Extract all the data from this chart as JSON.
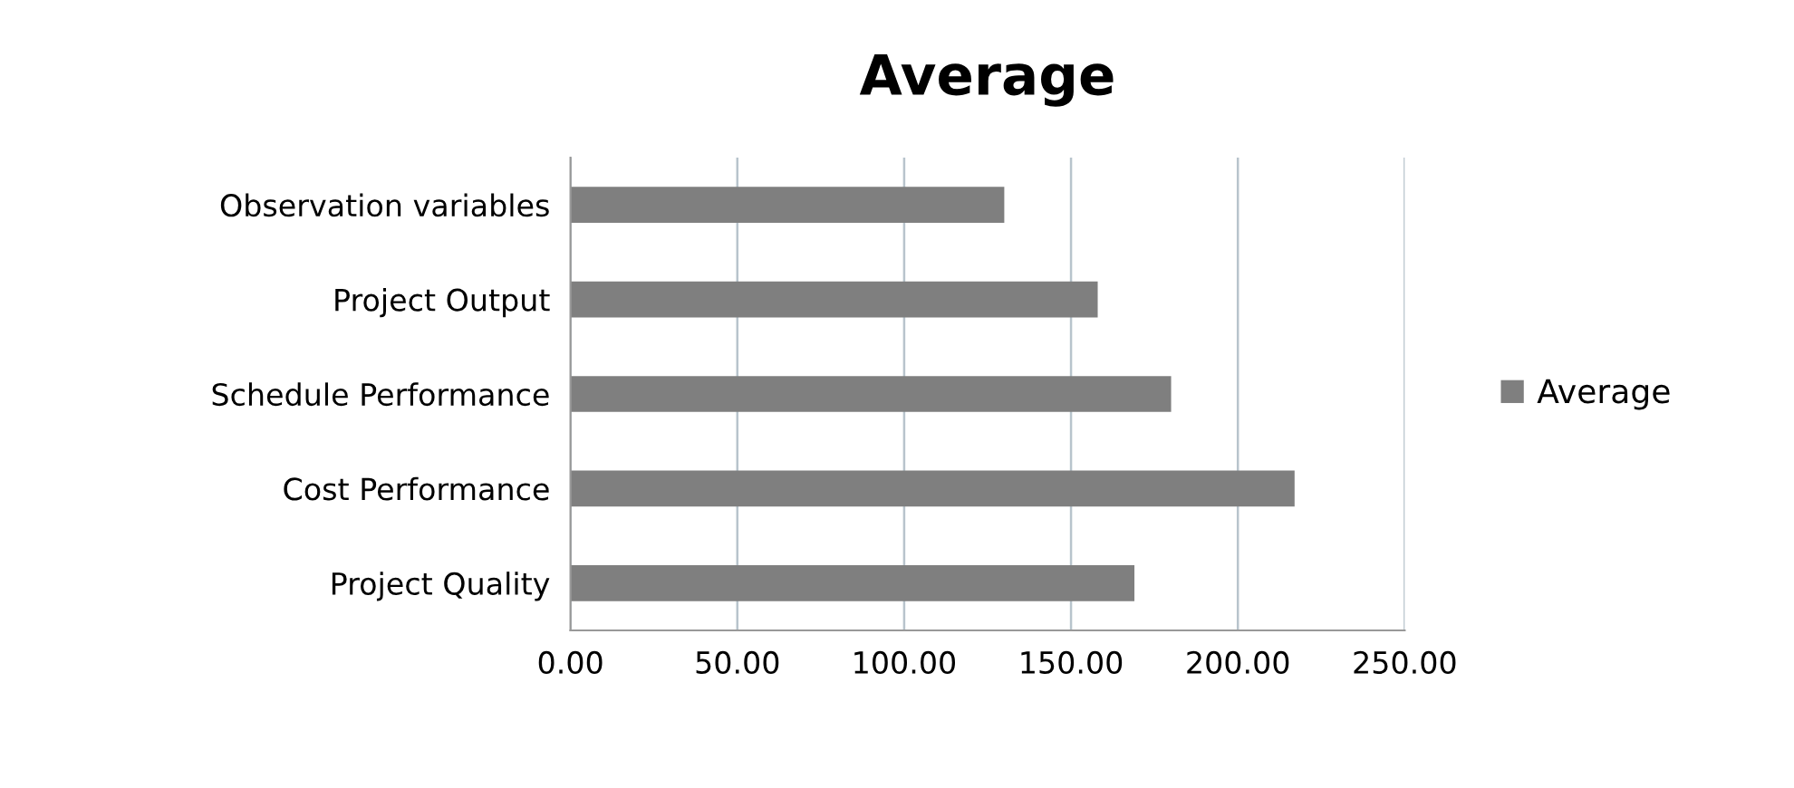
{
  "chart_data": {
    "type": "bar",
    "orientation": "horizontal",
    "title": "Average",
    "categories": [
      "Observation variables",
      "Project Output",
      "Schedule Performance",
      "Cost Performance",
      "Project Quality"
    ],
    "series": [
      {
        "name": "Average",
        "color": "#7f7f7f",
        "values": [
          130,
          158,
          180,
          217,
          169
        ]
      }
    ],
    "xlim": [
      0,
      250
    ],
    "xticks": [
      {
        "value": 0,
        "label": "0.00"
      },
      {
        "value": 50,
        "label": "50.00"
      },
      {
        "value": 100,
        "label": "100.00"
      },
      {
        "value": 150,
        "label": "150.00"
      },
      {
        "value": 200,
        "label": "200.00"
      },
      {
        "value": 250,
        "label": "250.00"
      }
    ],
    "grid": "x",
    "legend": "right"
  }
}
